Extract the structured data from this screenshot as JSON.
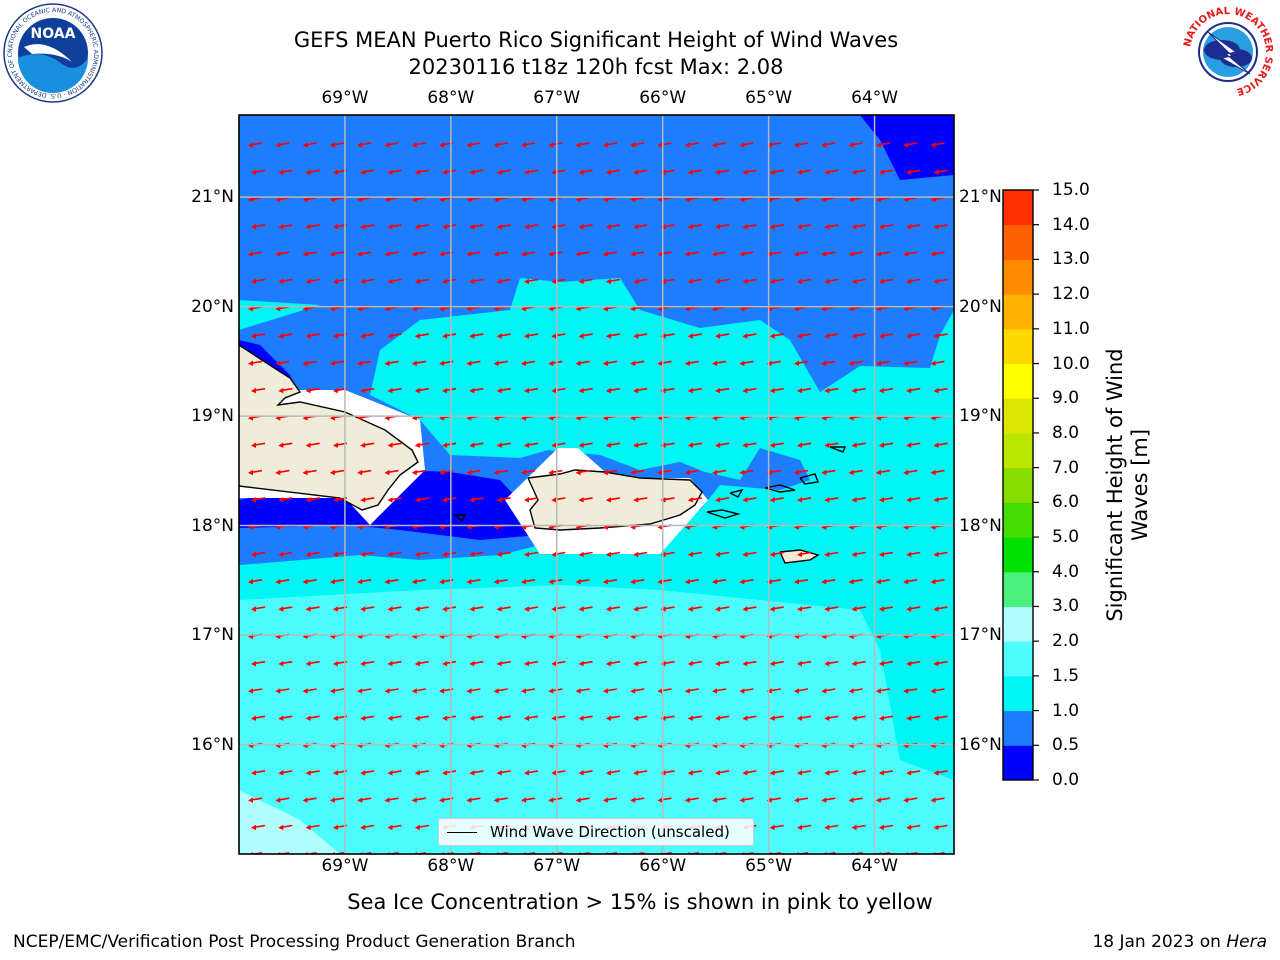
{
  "header": {
    "title_line1": "GEFS MEAN Puerto Rico Significant Height of Wind Waves",
    "title_line2": "20230116 t18z 120h fcst   Max: 2.08"
  },
  "logos": {
    "noaa_text": "NOAA",
    "noaa_ring_text": "NATIONAL OCEANIC AND ATMOSPHERIC ADMINISTRATION · U.S. DEPARTMENT OF COMMERCE",
    "nws_ring_text": "NATIONAL WEATHER SERVICE"
  },
  "map": {
    "lon_labels": [
      "69°W",
      "68°W",
      "67°W",
      "66°W",
      "65°W",
      "64°W"
    ],
    "lat_labels": [
      "21°N",
      "20°N",
      "19°N",
      "18°N",
      "17°N",
      "16°N"
    ],
    "extent_lon": [
      -70.0,
      -63.25
    ],
    "extent_lat": [
      15.0,
      21.75
    ],
    "colors": {
      "0.0-0.5": "#0000ff",
      "0.5-1.0": "#1e7cff",
      "1.0-1.5": "#00f5f5",
      "1.5-2.0": "#4dfdfd",
      "2.0-3.0": "#b0fefe",
      "land": "#efecda",
      "arrow": "#ff0000",
      "grid": "#b8b8b8"
    },
    "arrow_direction": "westward (toward ~265°)"
  },
  "legend": {
    "label": "Wind Wave Direction (unscaled)"
  },
  "colorbar": {
    "label": "Significant Height of Wind Waves [m]",
    "label_line1": "Significant Height of Wind",
    "label_line2": "Waves [m]",
    "ticks": [
      "0.0",
      "0.5",
      "1.0",
      "1.5",
      "2.0",
      "3.0",
      "4.0",
      "5.0",
      "6.0",
      "7.0",
      "8.0",
      "9.0",
      "10.0",
      "11.0",
      "12.0",
      "13.0",
      "14.0",
      "15.0"
    ],
    "colors": [
      "#0000ff",
      "#1e7cff",
      "#00f5f5",
      "#4dfdfd",
      "#b0fefe",
      "#4cf07c",
      "#00e000",
      "#44dd00",
      "#88dd00",
      "#bbe600",
      "#dde600",
      "#ffff00",
      "#ffd800",
      "#ffb200",
      "#ff8c00",
      "#ff6000",
      "#ff3000"
    ]
  },
  "notes": {
    "sea_ice": "Sea Ice Concentration > 15% is shown in pink to yellow"
  },
  "footer": {
    "left": "NCEP/EMC/Verification Post Processing Product Generation Branch",
    "right_prefix": "18 Jan 2023 on ",
    "right_machine": "Hera"
  }
}
